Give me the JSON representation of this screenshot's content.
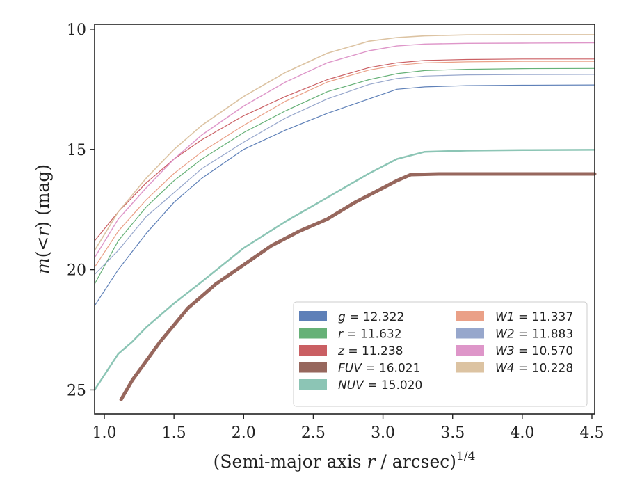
{
  "chart_data": {
    "type": "line",
    "xlabel": "(Semi-major axis r / arcsec)^{1/4}",
    "xlabel_parts": [
      "(Semi-major axis ",
      "r",
      " / arcsec)",
      "1/4"
    ],
    "ylabel": "m(<r) (mag)",
    "ylabel_parts": [
      "m",
      "(<",
      "r",
      ") (mag)"
    ],
    "xlim": [
      0.93,
      4.52
    ],
    "ylim": [
      26,
      9.8
    ],
    "y_inverted": true,
    "x_ticks": [
      "1.0",
      "1.5",
      "2.0",
      "2.5",
      "3.0",
      "3.5",
      "4.0",
      "4.5"
    ],
    "y_ticks": [
      "10",
      "15",
      "20",
      "25"
    ],
    "grid": false,
    "legend_placement": "lower-right",
    "series": [
      {
        "name": "g",
        "value": "12.322",
        "legend_label": "g = 12.322",
        "color": "#4c72b0",
        "width": 1.2,
        "x": [
          0.93,
          1.1,
          1.3,
          1.5,
          1.7,
          2.0,
          2.3,
          2.6,
          2.9,
          3.1,
          3.3,
          3.6,
          4.0,
          4.52
        ],
        "y": [
          21.5,
          20.0,
          18.5,
          17.2,
          16.2,
          15.0,
          14.2,
          13.5,
          12.9,
          12.5,
          12.4,
          12.35,
          12.33,
          12.32
        ]
      },
      {
        "name": "r",
        "value": "11.632",
        "legend_label": "r = 11.632",
        "color": "#55a868",
        "width": 1.2,
        "x": [
          0.93,
          1.1,
          1.3,
          1.5,
          1.7,
          2.0,
          2.3,
          2.6,
          2.9,
          3.1,
          3.3,
          3.6,
          4.0,
          4.52
        ],
        "y": [
          20.6,
          18.8,
          17.4,
          16.3,
          15.4,
          14.3,
          13.4,
          12.6,
          12.1,
          11.85,
          11.72,
          11.67,
          11.64,
          11.63
        ]
      },
      {
        "name": "z",
        "value": "11.238",
        "legend_label": "z = 11.238",
        "color": "#c44e52",
        "width": 1.2,
        "x": [
          0.93,
          1.1,
          1.3,
          1.5,
          1.7,
          2.0,
          2.3,
          2.6,
          2.9,
          3.1,
          3.3,
          3.6,
          4.0,
          4.52
        ],
        "y": [
          18.8,
          17.6,
          16.4,
          15.4,
          14.6,
          13.6,
          12.8,
          12.1,
          11.6,
          11.4,
          11.3,
          11.26,
          11.24,
          11.24
        ]
      },
      {
        "name": "FUV",
        "value": "16.021",
        "legend_label": "FUV = 16.021",
        "color": "#8c564b",
        "width": 5,
        "x": [
          1.12,
          1.2,
          1.3,
          1.4,
          1.5,
          1.6,
          1.7,
          1.8,
          2.0,
          2.2,
          2.4,
          2.6,
          2.8,
          3.0,
          3.1,
          3.2,
          3.4,
          3.7,
          4.0,
          4.52
        ],
        "y": [
          25.4,
          24.6,
          23.8,
          23.0,
          22.3,
          21.6,
          21.1,
          20.6,
          19.8,
          19.0,
          18.4,
          17.9,
          17.2,
          16.6,
          16.3,
          16.05,
          16.02,
          16.02,
          16.02,
          16.02
        ]
      },
      {
        "name": "NUV",
        "value": "15.020",
        "legend_label": "NUV = 15.020",
        "color": "#7fbfad",
        "width": 2.5,
        "x": [
          0.93,
          1.1,
          1.2,
          1.3,
          1.5,
          1.7,
          2.0,
          2.3,
          2.6,
          2.9,
          3.1,
          3.3,
          3.6,
          4.0,
          4.52
        ],
        "y": [
          25.0,
          23.5,
          23.0,
          22.4,
          21.4,
          20.5,
          19.1,
          18.0,
          17.0,
          16.0,
          15.4,
          15.1,
          15.05,
          15.03,
          15.02
        ]
      },
      {
        "name": "W1",
        "value": "11.337",
        "legend_label": "W1 = 11.337",
        "color": "#e8967a",
        "width": 1.2,
        "x": [
          0.93,
          1.1,
          1.3,
          1.5,
          1.7,
          2.0,
          2.3,
          2.6,
          2.9,
          3.1,
          3.3,
          3.6,
          4.0,
          4.52
        ],
        "y": [
          19.9,
          18.4,
          17.1,
          16.0,
          15.1,
          14.0,
          13.0,
          12.2,
          11.7,
          11.5,
          11.4,
          11.36,
          11.34,
          11.34
        ]
      },
      {
        "name": "W2",
        "value": "11.883",
        "legend_label": "W2 = 11.883",
        "color": "#8c9dc7",
        "width": 1.2,
        "x": [
          0.93,
          1.1,
          1.3,
          1.5,
          1.7,
          2.0,
          2.3,
          2.6,
          2.9,
          3.1,
          3.3,
          3.6,
          4.0,
          4.52
        ],
        "y": [
          20.2,
          19.2,
          17.8,
          16.8,
          15.8,
          14.7,
          13.7,
          12.9,
          12.3,
          12.05,
          11.95,
          11.9,
          11.89,
          11.88
        ]
      },
      {
        "name": "W3",
        "value": "10.570",
        "legend_label": "W3 = 10.570",
        "color": "#da8bc3",
        "width": 1.4,
        "x": [
          0.93,
          1.1,
          1.3,
          1.5,
          1.7,
          2.0,
          2.3,
          2.6,
          2.9,
          3.1,
          3.3,
          3.6,
          4.0,
          4.52
        ],
        "y": [
          19.5,
          17.9,
          16.6,
          15.4,
          14.4,
          13.2,
          12.2,
          11.4,
          10.9,
          10.7,
          10.62,
          10.59,
          10.58,
          10.57
        ]
      },
      {
        "name": "W4",
        "value": "10.228",
        "legend_label": "W4 = 10.228",
        "color": "#d8bc98",
        "width": 1.6,
        "x": [
          0.93,
          1.1,
          1.3,
          1.5,
          1.7,
          2.0,
          2.3,
          2.6,
          2.9,
          3.1,
          3.3,
          3.6,
          4.0,
          4.52
        ],
        "y": [
          19.2,
          17.6,
          16.2,
          15.0,
          14.0,
          12.8,
          11.8,
          11.0,
          10.5,
          10.35,
          10.28,
          10.24,
          10.23,
          10.23
        ]
      }
    ],
    "legend_columns": [
      [
        "g",
        "r",
        "z",
        "FUV",
        "NUV"
      ],
      [
        "W1",
        "W2",
        "W3",
        "W4"
      ]
    ]
  }
}
